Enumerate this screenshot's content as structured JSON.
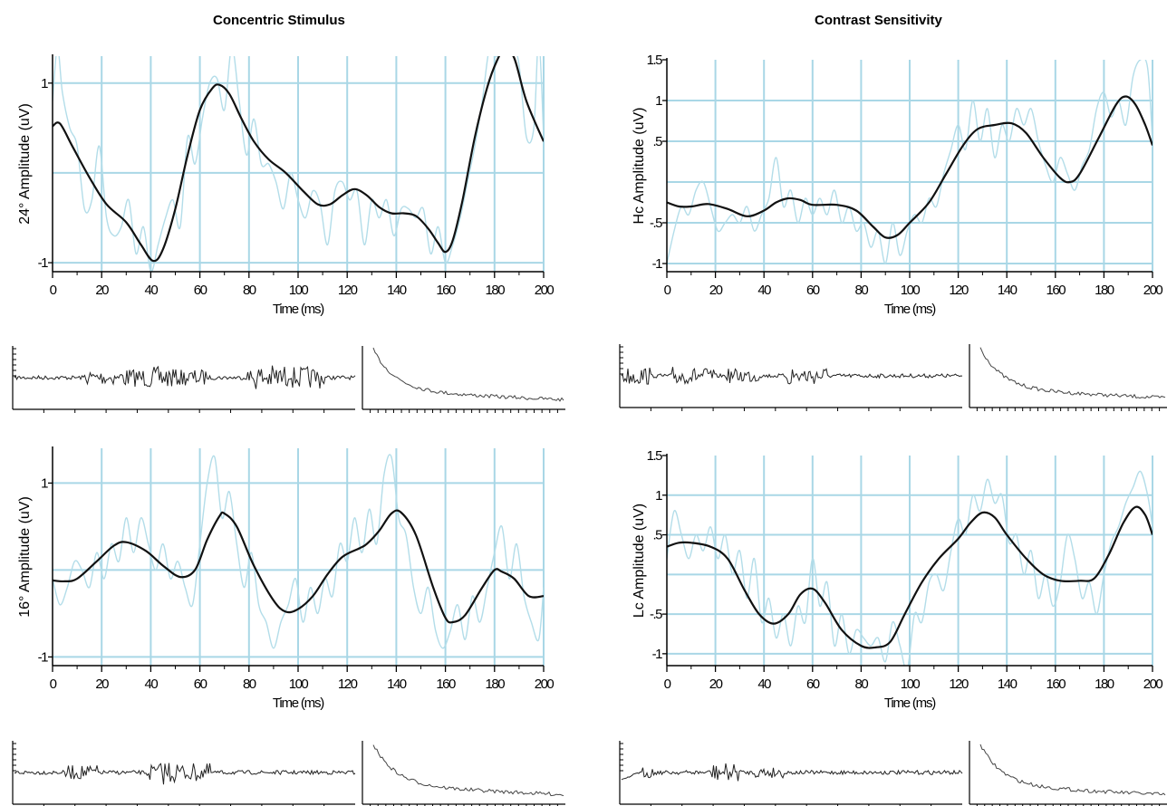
{
  "titles": {
    "left": "Concentric Stimulus",
    "right": "Contrast Sensitivity"
  },
  "colors": {
    "grid": "#a9d7e6",
    "raw": "#b3dde9",
    "smooth": "#111111",
    "trace": "#222222"
  },
  "chart_data": [
    {
      "id": "p24",
      "type": "line",
      "ylabel": "24° Amplitude (uV)",
      "xlabel": "Time (ms)",
      "xlim": [
        0,
        200
      ],
      "ylim": [
        -1.1,
        1.3
      ],
      "xticks": [
        0,
        20,
        40,
        60,
        80,
        100,
        120,
        140,
        160,
        180,
        200
      ],
      "xtick_labels": [
        "0",
        "20",
        "40",
        "60",
        "80",
        "100",
        "120",
        "140",
        "160",
        "180",
        "200"
      ],
      "yticks": [
        -1,
        1
      ],
      "ytick_labels": [
        "-1",
        "1"
      ],
      "ygrid": [
        -1,
        0,
        1
      ],
      "series": [
        {
          "style": "smooth",
          "x": [
            0,
            3,
            8,
            15,
            22,
            30,
            36,
            41,
            45,
            50,
            55,
            60,
            65,
            68,
            72,
            77,
            82,
            88,
            95,
            102,
            108,
            113,
            118,
            123,
            128,
            133,
            138,
            143,
            148,
            153,
            157,
            160,
            163,
            167,
            172,
            177,
            181,
            184,
            188,
            193,
            200
          ],
          "y": [
            0.52,
            0.55,
            0.3,
            -0.05,
            -0.35,
            -0.55,
            -0.8,
            -0.98,
            -0.85,
            -0.4,
            0.2,
            0.7,
            0.94,
            0.98,
            0.88,
            0.6,
            0.35,
            0.15,
            0.0,
            -0.2,
            -0.35,
            -0.35,
            -0.25,
            -0.18,
            -0.25,
            -0.38,
            -0.45,
            -0.45,
            -0.48,
            -0.62,
            -0.78,
            -0.88,
            -0.75,
            -0.3,
            0.4,
            0.95,
            1.25,
            1.37,
            1.28,
            0.8,
            0.35
          ]
        },
        {
          "style": "raw",
          "x": [
            0,
            2,
            4,
            7,
            10,
            13,
            16,
            19,
            22,
            25,
            28,
            31,
            34,
            37,
            40,
            43,
            46,
            49,
            52,
            55,
            58,
            61,
            64,
            67,
            70,
            73,
            76,
            79,
            82,
            85,
            88,
            91,
            94,
            97,
            100,
            103,
            106,
            109,
            112,
            115,
            118,
            121,
            124,
            127,
            130,
            133,
            136,
            139,
            142,
            145,
            148,
            151,
            154,
            157,
            160,
            163,
            166,
            169,
            172,
            175,
            178,
            181,
            184,
            187,
            190,
            193,
            196,
            198,
            200
          ],
          "y": [
            0.8,
            1.4,
            0.9,
            0.5,
            0.3,
            -0.4,
            -0.3,
            0.3,
            -0.5,
            -0.7,
            -0.6,
            -0.3,
            -0.9,
            -0.6,
            -1.1,
            -0.8,
            -0.5,
            -0.3,
            -0.6,
            0.4,
            0.1,
            0.6,
            1.0,
            1.05,
            0.7,
            1.4,
            0.8,
            0.2,
            0.6,
            0.1,
            0.1,
            -0.1,
            -0.4,
            0.0,
            -0.3,
            -0.5,
            -0.2,
            -0.35,
            -0.8,
            -0.2,
            -0.1,
            -0.3,
            -0.2,
            -0.8,
            -0.3,
            -0.5,
            -0.3,
            -0.7,
            -0.4,
            -0.4,
            -0.5,
            -0.4,
            -0.9,
            -0.6,
            -1.0,
            -0.8,
            -0.5,
            -0.1,
            0.3,
            0.8,
            1.4,
            1.3,
            1.7,
            1.5,
            1.2,
            0.4,
            0.5,
            1.5,
            0.4
          ]
        }
      ]
    },
    {
      "id": "hc",
      "type": "line",
      "ylabel": "Hc Amplitude (uV)",
      "xlabel": "Time (ms)",
      "xlim": [
        0,
        200
      ],
      "ylim": [
        -1.1,
        1.5
      ],
      "xticks": [
        0,
        20,
        40,
        60,
        80,
        100,
        120,
        140,
        160,
        180,
        200
      ],
      "xtick_labels": [
        "0",
        "20",
        "40",
        "60",
        "80",
        "100",
        "120",
        "140",
        "160",
        "180",
        "200"
      ],
      "yticks": [
        -1,
        -0.5,
        0.5,
        1,
        1.5
      ],
      "ytick_labels": [
        "-1",
        "-.5",
        ".5",
        "1",
        "1.5"
      ],
      "ygrid": [
        -1,
        -0.5,
        0,
        0.5,
        1
      ],
      "series": [
        {
          "style": "smooth",
          "x": [
            0,
            5,
            10,
            17,
            25,
            33,
            40,
            45,
            50,
            55,
            60,
            70,
            78,
            85,
            90,
            95,
            100,
            108,
            115,
            122,
            128,
            135,
            142,
            148,
            155,
            162,
            166,
            170,
            178,
            185,
            189,
            193,
            197,
            200
          ],
          "y": [
            -0.25,
            -0.3,
            -0.3,
            -0.27,
            -0.33,
            -0.42,
            -0.35,
            -0.25,
            -0.2,
            -0.22,
            -0.28,
            -0.28,
            -0.35,
            -0.55,
            -0.68,
            -0.65,
            -0.5,
            -0.25,
            0.1,
            0.45,
            0.65,
            0.7,
            0.72,
            0.6,
            0.3,
            0.05,
            0.0,
            0.1,
            0.55,
            0.95,
            1.05,
            0.95,
            0.7,
            0.45
          ]
        },
        {
          "style": "raw",
          "x": [
            0,
            3,
            6,
            9,
            12,
            15,
            18,
            21,
            24,
            27,
            30,
            33,
            36,
            39,
            42,
            45,
            48,
            51,
            54,
            57,
            60,
            63,
            66,
            69,
            72,
            75,
            78,
            81,
            84,
            87,
            90,
            93,
            96,
            99,
            102,
            105,
            108,
            111,
            114,
            117,
            120,
            123,
            126,
            129,
            132,
            135,
            138,
            141,
            144,
            147,
            150,
            153,
            156,
            159,
            162,
            165,
            168,
            171,
            174,
            177,
            180,
            183,
            186,
            189,
            192,
            195,
            198,
            200
          ],
          "y": [
            -1.0,
            -0.6,
            -0.3,
            -0.4,
            -0.1,
            0.0,
            -0.3,
            -0.6,
            -0.5,
            -0.4,
            -0.5,
            -0.3,
            -0.6,
            -0.4,
            -0.2,
            0.3,
            -0.3,
            -0.1,
            -0.5,
            -0.2,
            -0.4,
            -0.2,
            -0.4,
            -0.1,
            -0.5,
            -0.3,
            -0.6,
            -0.5,
            -0.8,
            -0.6,
            -1.0,
            -0.5,
            -0.9,
            -0.6,
            -0.4,
            -0.5,
            -0.2,
            -0.3,
            0.1,
            0.4,
            0.7,
            0.4,
            1.0,
            0.5,
            0.9,
            0.3,
            0.7,
            0.5,
            0.9,
            0.7,
            0.9,
            0.5,
            0.2,
            0.0,
            0.3,
            0.1,
            -0.1,
            0.2,
            0.4,
            0.9,
            1.1,
            0.8,
            1.0,
            0.7,
            1.3,
            1.5,
            1.4,
            0.5
          ]
        }
      ]
    },
    {
      "id": "p16",
      "type": "line",
      "ylabel": "16° Amplitude (uV)",
      "xlabel": "Time (ms)",
      "xlim": [
        0,
        200
      ],
      "ylim": [
        -1.1,
        1.4
      ],
      "xticks": [
        0,
        20,
        40,
        60,
        80,
        100,
        120,
        140,
        160,
        180,
        200
      ],
      "xtick_labels": [
        "0",
        "20",
        "40",
        "60",
        "80",
        "100",
        "120",
        "140",
        "160",
        "180",
        "200"
      ],
      "yticks": [
        -1,
        1
      ],
      "ytick_labels": [
        "-1",
        "1"
      ],
      "ygrid": [
        -1,
        0,
        1
      ],
      "series": [
        {
          "style": "smooth",
          "x": [
            0,
            5,
            10,
            18,
            25,
            30,
            38,
            45,
            52,
            58,
            63,
            68,
            70,
            75,
            82,
            90,
            95,
            100,
            106,
            112,
            118,
            125,
            128,
            133,
            138,
            142,
            148,
            155,
            160,
            163,
            168,
            175,
            180,
            183,
            188,
            194,
            200
          ],
          "y": [
            -0.12,
            -0.13,
            -0.1,
            0.1,
            0.28,
            0.32,
            0.22,
            0.05,
            -0.08,
            0.0,
            0.35,
            0.62,
            0.65,
            0.5,
            0.05,
            -0.35,
            -0.48,
            -0.45,
            -0.3,
            -0.05,
            0.15,
            0.25,
            0.3,
            0.45,
            0.65,
            0.66,
            0.4,
            -0.2,
            -0.55,
            -0.6,
            -0.52,
            -0.2,
            0.0,
            -0.02,
            -0.1,
            -0.3,
            -0.3
          ]
        },
        {
          "style": "raw",
          "x": [
            0,
            3,
            6,
            9,
            12,
            15,
            18,
            21,
            24,
            27,
            30,
            33,
            36,
            39,
            42,
            45,
            48,
            51,
            54,
            57,
            60,
            63,
            66,
            69,
            72,
            75,
            78,
            81,
            84,
            87,
            90,
            93,
            96,
            99,
            102,
            105,
            108,
            111,
            114,
            117,
            120,
            123,
            126,
            129,
            132,
            135,
            138,
            141,
            144,
            147,
            150,
            153,
            156,
            159,
            162,
            165,
            168,
            171,
            174,
            177,
            180,
            183,
            186,
            189,
            192,
            195,
            198,
            200
          ],
          "y": [
            -0.1,
            -0.4,
            -0.2,
            0.1,
            0.0,
            -0.2,
            0.2,
            -0.1,
            0.3,
            0.1,
            0.6,
            0.2,
            0.6,
            0.3,
            0.0,
            0.3,
            -0.1,
            0.1,
            -0.2,
            -0.4,
            0.3,
            1.0,
            1.3,
            0.6,
            0.9,
            0.3,
            -0.2,
            0.2,
            -0.4,
            -0.6,
            -0.9,
            -0.6,
            -0.4,
            -0.1,
            -0.6,
            -0.2,
            -0.5,
            -0.1,
            -0.3,
            0.3,
            0.1,
            0.6,
            0.2,
            0.7,
            0.3,
            1.1,
            1.3,
            0.6,
            0.4,
            -0.2,
            -0.5,
            -0.2,
            -0.7,
            -0.9,
            -0.7,
            -0.4,
            -0.8,
            -0.3,
            -0.6,
            -0.2,
            0.2,
            0.5,
            -0.1,
            0.3,
            -0.3,
            -0.6,
            -0.8,
            -0.2
          ]
        }
      ]
    },
    {
      "id": "lc",
      "type": "line",
      "ylabel": "Lc Amplitude (uV)",
      "xlabel": "Time (ms)",
      "xlim": [
        0,
        200
      ],
      "ylim": [
        -1.15,
        1.5
      ],
      "xticks": [
        0,
        20,
        40,
        60,
        80,
        100,
        120,
        140,
        160,
        180,
        200
      ],
      "xtick_labels": [
        "0",
        "20",
        "40",
        "60",
        "80",
        "100",
        "120",
        "140",
        "160",
        "180",
        "200"
      ],
      "yticks": [
        -1,
        -0.5,
        0.5,
        1,
        1.5
      ],
      "ytick_labels": [
        "-1",
        "-.5",
        ".5",
        "1",
        "1.5"
      ],
      "ygrid": [
        -1,
        -0.5,
        0,
        0.5,
        1
      ],
      "series": [
        {
          "style": "smooth",
          "x": [
            0,
            5,
            10,
            18,
            25,
            32,
            38,
            44,
            50,
            55,
            60,
            65,
            72,
            80,
            86,
            92,
            98,
            105,
            112,
            120,
            125,
            130,
            135,
            140,
            148,
            155,
            162,
            170,
            176,
            182,
            188,
            193,
            197,
            200
          ],
          "y": [
            0.35,
            0.4,
            0.4,
            0.35,
            0.2,
            -0.2,
            -0.5,
            -0.62,
            -0.5,
            -0.25,
            -0.18,
            -0.35,
            -0.7,
            -0.9,
            -0.92,
            -0.85,
            -0.5,
            -0.1,
            0.2,
            0.45,
            0.65,
            0.78,
            0.72,
            0.5,
            0.2,
            0.0,
            -0.08,
            -0.08,
            -0.05,
            0.25,
            0.65,
            0.85,
            0.75,
            0.5
          ]
        },
        {
          "style": "raw",
          "x": [
            0,
            3,
            6,
            9,
            12,
            15,
            18,
            21,
            24,
            27,
            30,
            33,
            36,
            39,
            42,
            45,
            48,
            51,
            54,
            57,
            60,
            63,
            66,
            69,
            72,
            75,
            78,
            81,
            84,
            87,
            90,
            93,
            96,
            99,
            102,
            105,
            108,
            111,
            114,
            117,
            120,
            123,
            126,
            129,
            132,
            135,
            138,
            141,
            144,
            147,
            150,
            153,
            156,
            159,
            162,
            165,
            168,
            171,
            174,
            177,
            180,
            183,
            186,
            189,
            192,
            195,
            198,
            200
          ],
          "y": [
            0.2,
            0.8,
            0.5,
            0.2,
            0.5,
            0.3,
            0.6,
            0.2,
            0.5,
            0.0,
            0.3,
            -0.3,
            0.2,
            -0.6,
            -0.3,
            -0.8,
            -0.5,
            -0.9,
            -0.4,
            -0.6,
            0.2,
            -0.4,
            -0.1,
            -0.9,
            -0.5,
            -1.0,
            -0.7,
            -0.8,
            -0.9,
            -0.8,
            -1.1,
            -0.6,
            -0.9,
            -1.2,
            -0.5,
            -0.6,
            -0.1,
            0.0,
            -0.2,
            0.3,
            0.7,
            0.5,
            1.0,
            0.8,
            1.2,
            0.9,
            1.0,
            0.4,
            0.5,
            0.0,
            0.3,
            -0.3,
            0.0,
            -0.4,
            -0.1,
            0.5,
            0.2,
            -0.3,
            -0.1,
            -0.5,
            0.0,
            0.4,
            0.6,
            0.9,
            1.1,
            1.3,
            1.0,
            0.6
          ]
        }
      ]
    }
  ]
}
